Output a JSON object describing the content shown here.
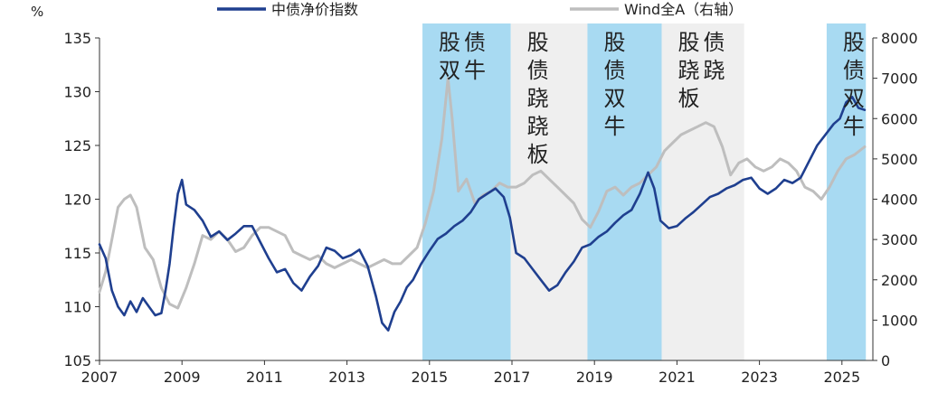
{
  "chart_data": {
    "type": "line",
    "title": "",
    "y_unit_label": "%",
    "xlabel": "",
    "ylabel": "",
    "x_range": [
      2007.0,
      2025.75
    ],
    "x_ticks": [
      2007,
      2009,
      2011,
      2013,
      2015,
      2017,
      2019,
      2021,
      2023,
      2025
    ],
    "ylim_left": [
      105,
      135
    ],
    "y_ticks_left": [
      105,
      110,
      115,
      120,
      125,
      130,
      135
    ],
    "ylim_right": [
      0,
      8000
    ],
    "y_ticks_right": [
      0,
      1000,
      2000,
      3000,
      4000,
      5000,
      6000,
      7000,
      8000
    ],
    "grid": false,
    "legend_position": "top",
    "shaded_periods": [
      {
        "start": 2014.83,
        "end": 2016.97,
        "label": "股债双牛",
        "lines": [
          "股债",
          "双牛"
        ],
        "color": "#a8daf2",
        "layout": "rows"
      },
      {
        "start": 2016.97,
        "end": 2018.83,
        "label": "股债跷跷板",
        "lines": [
          "股",
          "债",
          "跷",
          "跷",
          "板"
        ],
        "color": "#efefef",
        "layout": "column"
      },
      {
        "start": 2018.83,
        "end": 2020.63,
        "label": "股债双牛",
        "lines": [
          "股",
          "债",
          "双",
          "牛"
        ],
        "color": "#a8daf2",
        "layout": "column"
      },
      {
        "start": 2020.63,
        "end": 2022.63,
        "label": "股债跷跷板",
        "lines": [
          "股债",
          "跷跷",
          "板"
        ],
        "color": "#efefef",
        "layout": "rows"
      },
      {
        "start": 2024.63,
        "end": 2025.58,
        "label": "股债双牛",
        "lines": [
          "股",
          "债",
          "双",
          "牛"
        ],
        "color": "#a8daf2",
        "layout": "column"
      }
    ],
    "series": [
      {
        "name": "中债净价指数",
        "axis": "left",
        "color": "#1f3f8f",
        "x": [
          2007.0,
          2007.15,
          2007.3,
          2007.45,
          2007.6,
          2007.75,
          2007.9,
          2008.05,
          2008.2,
          2008.35,
          2008.5,
          2008.6,
          2008.7,
          2008.8,
          2008.9,
          2009.0,
          2009.1,
          2009.3,
          2009.5,
          2009.7,
          2009.9,
          2010.1,
          2010.3,
          2010.5,
          2010.7,
          2010.9,
          2011.1,
          2011.3,
          2011.5,
          2011.7,
          2011.9,
          2012.1,
          2012.3,
          2012.5,
          2012.7,
          2012.9,
          2013.1,
          2013.3,
          2013.5,
          2013.7,
          2013.85,
          2014.0,
          2014.15,
          2014.3,
          2014.45,
          2014.6,
          2014.8,
          2015.0,
          2015.2,
          2015.4,
          2015.6,
          2015.8,
          2016.0,
          2016.2,
          2016.4,
          2016.6,
          2016.8,
          2016.95,
          2017.1,
          2017.3,
          2017.5,
          2017.7,
          2017.9,
          2018.1,
          2018.3,
          2018.5,
          2018.7,
          2018.9,
          2019.1,
          2019.3,
          2019.5,
          2019.7,
          2019.9,
          2020.1,
          2020.3,
          2020.45,
          2020.6,
          2020.8,
          2021.0,
          2021.2,
          2021.4,
          2021.6,
          2021.8,
          2022.0,
          2022.2,
          2022.4,
          2022.6,
          2022.8,
          2023.0,
          2023.2,
          2023.4,
          2023.6,
          2023.8,
          2024.0,
          2024.2,
          2024.4,
          2024.6,
          2024.8,
          2024.95,
          2025.1,
          2025.25,
          2025.4,
          2025.55
        ],
        "values": [
          115.8,
          114.5,
          111.5,
          110.0,
          109.2,
          110.5,
          109.5,
          110.8,
          110.0,
          109.2,
          109.4,
          111.5,
          114.0,
          117.5,
          120.5,
          121.8,
          119.5,
          119.0,
          118.0,
          116.5,
          117.0,
          116.2,
          116.8,
          117.5,
          117.5,
          116.0,
          114.5,
          113.2,
          113.5,
          112.2,
          111.5,
          112.8,
          113.8,
          115.5,
          115.2,
          114.5,
          114.8,
          115.3,
          113.8,
          111.0,
          108.5,
          107.8,
          109.5,
          110.5,
          111.8,
          112.5,
          114.0,
          115.2,
          116.3,
          116.8,
          117.5,
          118.0,
          118.8,
          120.0,
          120.5,
          121.0,
          120.2,
          118.3,
          115.0,
          114.5,
          113.5,
          112.5,
          111.5,
          112.0,
          113.2,
          114.2,
          115.5,
          115.8,
          116.5,
          117.0,
          117.8,
          118.5,
          119.0,
          120.5,
          122.5,
          121.0,
          118.0,
          117.3,
          117.5,
          118.2,
          118.8,
          119.5,
          120.2,
          120.5,
          121.0,
          121.3,
          121.8,
          122.0,
          121.0,
          120.5,
          121.0,
          121.8,
          121.5,
          122.0,
          123.5,
          125.0,
          126.0,
          127.0,
          127.5,
          129.0,
          129.5,
          128.5,
          128.3
        ]
      },
      {
        "name": "Wind全A（右轴）",
        "axis": "right",
        "color": "#bebebe",
        "x": [
          2007.0,
          2007.15,
          2007.3,
          2007.45,
          2007.6,
          2007.75,
          2007.9,
          2008.1,
          2008.3,
          2008.5,
          2008.7,
          2008.9,
          2009.1,
          2009.3,
          2009.5,
          2009.7,
          2009.9,
          2010.1,
          2010.3,
          2010.5,
          2010.7,
          2010.9,
          2011.1,
          2011.3,
          2011.5,
          2011.7,
          2011.9,
          2012.1,
          2012.3,
          2012.5,
          2012.7,
          2012.9,
          2013.1,
          2013.3,
          2013.5,
          2013.7,
          2013.9,
          2014.1,
          2014.3,
          2014.5,
          2014.7,
          2014.9,
          2015.1,
          2015.3,
          2015.45,
          2015.55,
          2015.7,
          2015.9,
          2016.1,
          2016.3,
          2016.5,
          2016.7,
          2016.9,
          2017.1,
          2017.3,
          2017.5,
          2017.7,
          2017.9,
          2018.1,
          2018.3,
          2018.5,
          2018.7,
          2018.9,
          2019.1,
          2019.3,
          2019.5,
          2019.7,
          2019.9,
          2020.1,
          2020.3,
          2020.5,
          2020.7,
          2020.9,
          2021.1,
          2021.3,
          2021.5,
          2021.7,
          2021.9,
          2022.1,
          2022.3,
          2022.5,
          2022.7,
          2022.9,
          2023.1,
          2023.3,
          2023.5,
          2023.7,
          2023.9,
          2024.1,
          2024.3,
          2024.5,
          2024.7,
          2024.9,
          2025.1,
          2025.3,
          2025.55
        ],
        "values": [
          1700,
          2200,
          3000,
          3800,
          4000,
          4100,
          3800,
          2800,
          2500,
          1800,
          1400,
          1300,
          1800,
          2400,
          3100,
          3000,
          3200,
          3000,
          2700,
          2800,
          3100,
          3300,
          3300,
          3200,
          3100,
          2700,
          2600,
          2500,
          2600,
          2400,
          2300,
          2400,
          2500,
          2400,
          2300,
          2400,
          2500,
          2400,
          2400,
          2600,
          2800,
          3400,
          4200,
          5500,
          7000,
          6000,
          4200,
          4500,
          3900,
          4100,
          4200,
          4400,
          4300,
          4300,
          4400,
          4600,
          4700,
          4500,
          4300,
          4100,
          3900,
          3500,
          3300,
          3700,
          4200,
          4300,
          4100,
          4300,
          4400,
          4600,
          4800,
          5200,
          5400,
          5600,
          5700,
          5800,
          5900,
          5800,
          5300,
          4600,
          4900,
          5000,
          4800,
          4700,
          4800,
          5000,
          4900,
          4700,
          4300,
          4200,
          4000,
          4300,
          4700,
          5000,
          5100,
          5300
        ]
      }
    ]
  }
}
